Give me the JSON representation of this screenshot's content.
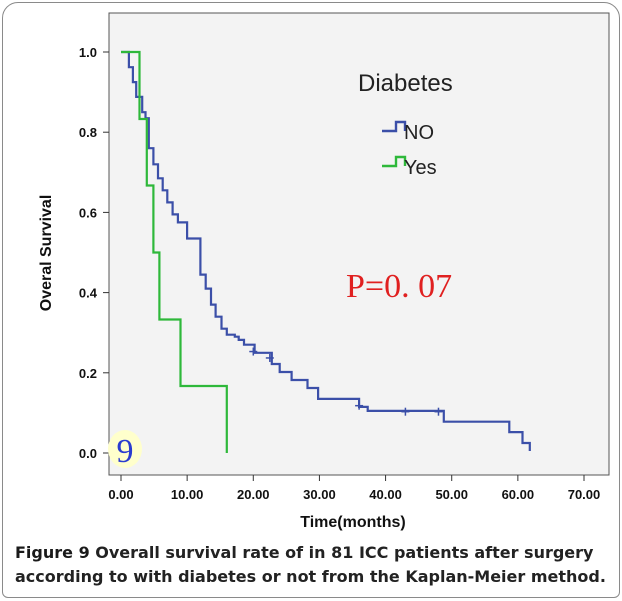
{
  "chart_data": {
    "type": "line",
    "subtype": "kaplan-meier",
    "xlabel": "Time(months)",
    "ylabel": "Overal Survival",
    "xlim": [
      0,
      70
    ],
    "ylim": [
      0,
      1.0
    ],
    "xticks": [
      "0.00",
      "10.00",
      "20.00",
      "30.00",
      "40.00",
      "50.00",
      "60.00",
      "70.00"
    ],
    "yticks": [
      "0.0",
      "0.2",
      "0.4",
      "0.6",
      "0.8",
      "1.0"
    ],
    "grid": false,
    "legend_title": "Diabetes",
    "legend_position": "top-right",
    "annotation": "P=0. 07",
    "panel_label": "9",
    "series": [
      {
        "name": "NO",
        "color": "#3b4fa8",
        "steps": [
          [
            0,
            1.0
          ],
          [
            1.2,
            0.962
          ],
          [
            1.8,
            0.925
          ],
          [
            2.3,
            0.888
          ],
          [
            3.2,
            0.85
          ],
          [
            3.7,
            0.835
          ],
          [
            4.2,
            0.76
          ],
          [
            4.9,
            0.72
          ],
          [
            5.6,
            0.685
          ],
          [
            6.3,
            0.655
          ],
          [
            7,
            0.625
          ],
          [
            7.8,
            0.595
          ],
          [
            8.6,
            0.575
          ],
          [
            10,
            0.535
          ],
          [
            12,
            0.445
          ],
          [
            12.8,
            0.41
          ],
          [
            13.6,
            0.37
          ],
          [
            14.3,
            0.34
          ],
          [
            15.2,
            0.31
          ],
          [
            16,
            0.295
          ],
          [
            17.2,
            0.29
          ],
          [
            17.8,
            0.282
          ],
          [
            18.6,
            0.27
          ],
          [
            20.2,
            0.25
          ],
          [
            22.8,
            0.222
          ],
          [
            24,
            0.202
          ],
          [
            25.8,
            0.182
          ],
          [
            28.2,
            0.162
          ],
          [
            29.8,
            0.135
          ],
          [
            36,
            0.115
          ],
          [
            37.3,
            0.105
          ],
          [
            48.8,
            0.078
          ],
          [
            58.7,
            0.052
          ],
          [
            60.7,
            0.025
          ],
          [
            61.8,
            0.005
          ]
        ],
        "end_x": 61.8,
        "censors": [
          [
            20,
            0.253
          ],
          [
            22.5,
            0.237
          ],
          [
            36,
            0.118
          ],
          [
            43,
            0.103
          ],
          [
            48,
            0.103
          ]
        ]
      },
      {
        "name": "Yes",
        "color": "#2eb83a",
        "steps": [
          [
            0,
            1.0
          ],
          [
            2.8,
            0.833
          ],
          [
            3.9,
            0.667
          ],
          [
            4.9,
            0.5
          ],
          [
            5.8,
            0.333
          ],
          [
            9,
            0.167
          ],
          [
            16,
            0.0
          ]
        ],
        "end_x": 16,
        "censors": []
      }
    ]
  },
  "caption": {
    "lead": "Figure 9",
    "rest": " Overall survival rate of in 81 ICC patients after surgery according to with diabetes or not from the Kaplan-Meier method."
  }
}
